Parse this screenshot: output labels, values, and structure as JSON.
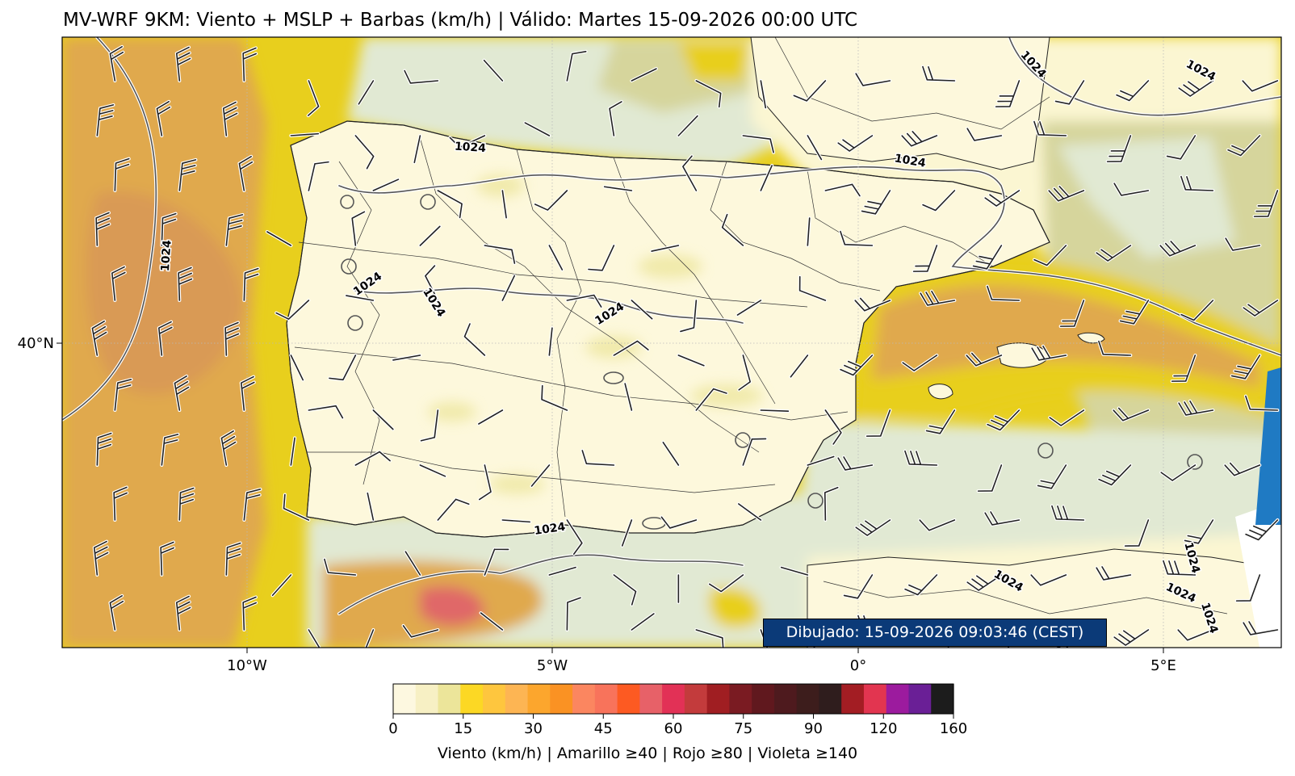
{
  "title": "MV-WRF 9KM: Viento + MSLP + Barbas (km/h) | Válido: Martes 15-09-2026 00:00 UTC",
  "drawn_stamp": "Dibujado: 15-09-2026 09:03:46 (CEST)",
  "map": {
    "region": "Iberian Peninsula and Balearic Islands",
    "x_ticks": [
      {
        "label": "10°W",
        "lon": -10
      },
      {
        "label": "5°W",
        "lon": -5
      },
      {
        "label": "0°",
        "lon": 0
      },
      {
        "label": "5°E",
        "lon": 5
      }
    ],
    "y_ticks": [
      {
        "label": "40°N",
        "lat": 40
      }
    ],
    "isobar_labels": [
      "1024",
      "1024",
      "1024",
      "1024",
      "1024",
      "1024",
      "1024",
      "1024",
      "1024",
      "1024",
      "1024",
      "1024",
      "1024"
    ],
    "colors": {
      "calm": "#fdf8dc",
      "light": "#e9e3a0",
      "pale_green": "#e1e9d3",
      "yellow": "#e8cf1d",
      "orange": "#e0a94e",
      "red_core": "#e06868",
      "sea_edge_blue": "#1f7ac3"
    }
  },
  "colorbar": {
    "ticks": [
      "0",
      "15",
      "30",
      "45",
      "60",
      "75",
      "90",
      "120",
      "160"
    ],
    "colors": [
      "#fdf8e0",
      "#f7f0c4",
      "#ece59a",
      "#fcd824",
      "#fec63e",
      "#fdb553",
      "#fca62d",
      "#fa9223",
      "#fb8660",
      "#f8735b",
      "#fd5a22",
      "#e76168",
      "#e23156",
      "#c33b3c",
      "#a01e22",
      "#7a1b22",
      "#60181e",
      "#4e1a1e",
      "#3d1d1c",
      "#2f1d1d",
      "#a31d23",
      "#e23550",
      "#9c1b9e",
      "#6a1f96",
      "#1c1c1c"
    ],
    "label": "Viento (km/h) | Amarillo ≥40 | Rojo ≥80 | Violeta ≥140"
  }
}
